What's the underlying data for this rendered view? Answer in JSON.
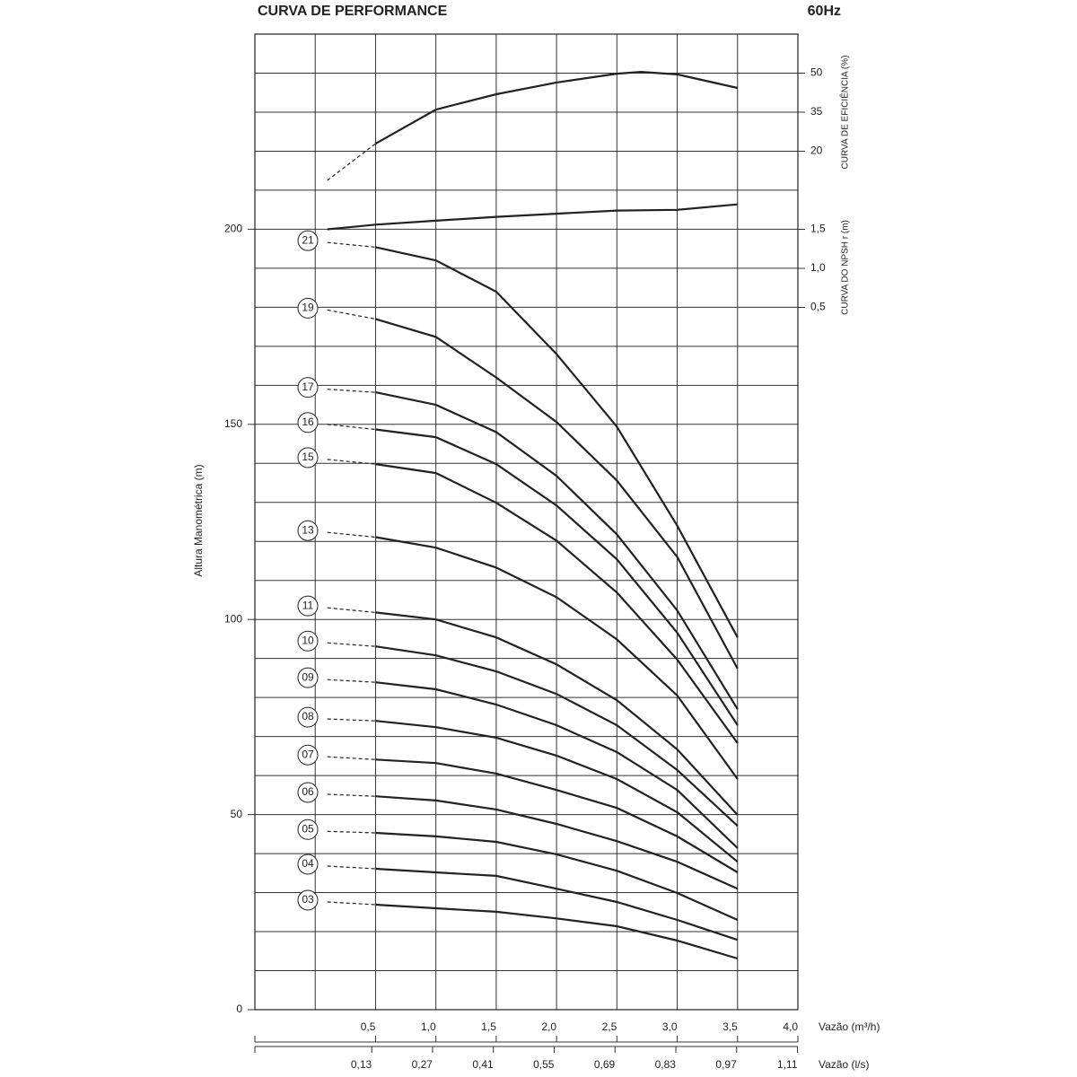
{
  "chart_data": [
    {
      "type": "line",
      "title": "CURVA DE PERFORMANCE",
      "subtitle": "60Hz",
      "y_label": "Altura Manométrica (m)",
      "x_label": "Vazão (m³/h)",
      "x2_label": "Vazão (l/s)",
      "x": [
        0.1,
        0.5,
        1.0,
        1.5,
        2.0,
        2.5,
        3.0,
        3.5
      ],
      "xlim": [
        -0.5,
        4.0
      ],
      "xticks": [
        {
          "value": 0.5,
          "label": "0,5"
        },
        {
          "value": 1.0,
          "label": "1,0"
        },
        {
          "value": 1.5,
          "label": "1,5"
        },
        {
          "value": 2.0,
          "label": "2,0"
        },
        {
          "value": 2.5,
          "label": "2,5"
        },
        {
          "value": 3.0,
          "label": "3,0"
        },
        {
          "value": 3.5,
          "label": "3,5"
        },
        {
          "value": 4.0,
          "label": "4,0"
        }
      ],
      "xminor": [
        0
      ],
      "x2lim": [
        -0.139,
        1.111
      ],
      "x2ticks": [
        {
          "value": 0.13,
          "label": "0,13"
        },
        {
          "value": 0.27,
          "label": "0,27"
        },
        {
          "value": 0.41,
          "label": "0,41"
        },
        {
          "value": 0.55,
          "label": "0,55"
        },
        {
          "value": 0.69,
          "label": "0,69"
        },
        {
          "value": 0.83,
          "label": "0,83"
        },
        {
          "value": 0.97,
          "label": "0,97"
        },
        {
          "value": 1.11,
          "label": "1,11"
        }
      ],
      "ylim": [
        0,
        250
      ],
      "yticks": [
        0,
        50,
        100,
        150,
        200
      ],
      "yminor": [
        10,
        20,
        30,
        40,
        60,
        70,
        80,
        90,
        110,
        120,
        130,
        140,
        160,
        170,
        180,
        190,
        210,
        220,
        230,
        240
      ],
      "grid": true,
      "color": "#222222",
      "series": [
        {
          "name": "21",
          "values": [
            196.6,
            195.4,
            192,
            184,
            168,
            149.4,
            124,
            95.4
          ]
        },
        {
          "name": "19",
          "values": [
            179.3,
            177,
            172.4,
            162,
            150.6,
            135.6,
            116,
            87.4
          ]
        },
        {
          "name": "17",
          "values": [
            159,
            158.2,
            155,
            148,
            136.8,
            121.8,
            102.3,
            77
          ]
        },
        {
          "name": "16",
          "values": [
            150,
            148.7,
            146.7,
            139.8,
            129.2,
            115.4,
            96.6,
            72.9
          ]
        },
        {
          "name": "15",
          "values": [
            141,
            139.8,
            137.5,
            129.9,
            120.2,
            106.9,
            89.7,
            68.3
          ]
        },
        {
          "name": "13",
          "values": [
            122.3,
            121.1,
            118.4,
            113.3,
            105.7,
            94.9,
            80.5,
            59.1
          ]
        },
        {
          "name": "11",
          "values": [
            103,
            101.8,
            100,
            95.4,
            88.5,
            79.3,
            66.7,
            49.9
          ]
        },
        {
          "name": "10",
          "values": [
            94,
            93.1,
            90.8,
            86.7,
            80.9,
            72.9,
            61.4,
            47.1
          ]
        },
        {
          "name": "09",
          "values": [
            84.6,
            83.9,
            82.1,
            78.2,
            72.9,
            66,
            56.3,
            41.4
          ]
        },
        {
          "name": "08",
          "values": [
            74.5,
            74,
            72.4,
            69.7,
            65.1,
            59.1,
            50.6,
            37.9
          ]
        },
        {
          "name": "07",
          "values": [
            64.8,
            64.1,
            63.2,
            60.5,
            56.3,
            51.7,
            44.4,
            35.2
          ]
        },
        {
          "name": "06",
          "values": [
            55.2,
            54.7,
            53.6,
            51.3,
            47.6,
            43.2,
            37.9,
            31
          ]
        },
        {
          "name": "05",
          "values": [
            45.7,
            45.3,
            44.4,
            43,
            39.8,
            35.6,
            29.9,
            23
          ]
        },
        {
          "name": "04",
          "values": [
            36.8,
            36.1,
            35.2,
            34.3,
            31,
            27.6,
            23,
            17.9
          ]
        },
        {
          "name": "03",
          "values": [
            27.6,
            26.9,
            26,
            25.1,
            23.4,
            21.4,
            17.7,
            13.1
          ]
        }
      ]
    },
    {
      "type": "line",
      "y_label": "CURVA DE EFICIÊNCIA (%)",
      "x": [
        0.1,
        0.5,
        1.0,
        1.5,
        2.0,
        2.5,
        2.7,
        3.0,
        3.5
      ],
      "values": [
        8.8,
        22.9,
        36,
        41.9,
        46.4,
        49.8,
        50.5,
        49.5,
        44.3
      ],
      "ylim": [
        5,
        65
      ],
      "yticks": [
        20,
        35,
        50
      ],
      "color": "#222222"
    },
    {
      "type": "line",
      "y_label": "CURVA DO NPSH r (m)",
      "x": [
        0.1,
        0.5,
        1.0,
        1.5,
        2.0,
        2.5,
        3.0,
        3.5
      ],
      "values": [
        1.5,
        1.56,
        1.61,
        1.66,
        1.7,
        1.74,
        1.75,
        1.82
      ],
      "ylim": [
        0,
        2
      ],
      "yticks": [
        {
          "value": 1.5,
          "label": "1,5"
        },
        {
          "value": 1.0,
          "label": "1,0"
        },
        {
          "value": 0.5,
          "label": "0,5"
        }
      ],
      "color": "#222222"
    }
  ]
}
